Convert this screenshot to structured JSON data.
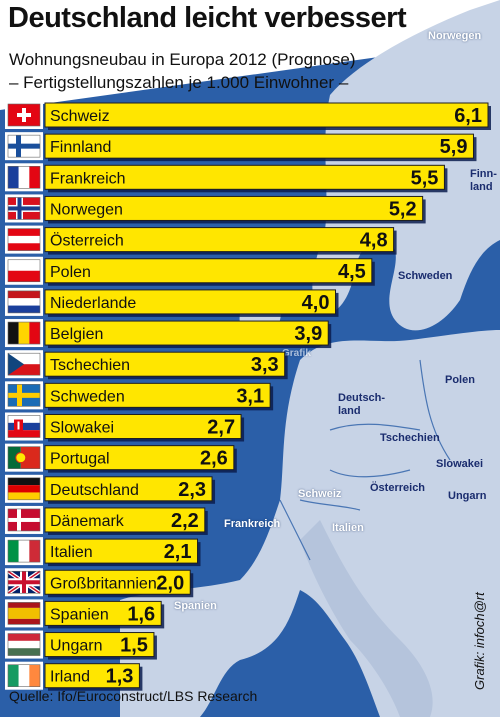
{
  "title": "Deutschland leicht verbessert",
  "subtitle": "Wohnungsneubau in Europa 2012 (Prognose)",
  "subtitle2": "– Fertigstellungszahlen je 1.000 Einwohner –",
  "source": "Quelle: Ifo/Euroconstruct/LBS Research",
  "credit": "Grafik: infoch@rt",
  "colors": {
    "bar": "#ffe600",
    "bar_edge": "#1f1f1f",
    "shadow": "#0a1c4e",
    "sea": "#2b5fa8",
    "land": "#c7d3e6"
  },
  "map_labels": {
    "norwegen": "Norwegen",
    "finnland": "Finn-\nland",
    "schweden": "Schweden",
    "polen": "Polen",
    "deutschland": "Deutsch-\nland",
    "tschechien": "Tschechien",
    "slowakei": "Slowakei",
    "oesterreich": "Österreich",
    "schweiz": "Schweiz",
    "ungarn": "Ungarn",
    "frankreich": "Frankreich",
    "italien": "Italien",
    "spanien": "Spanien",
    "grafik": "Grafik"
  },
  "chart_data": {
    "type": "bar",
    "orientation": "horizontal",
    "title": "Deutschland leicht verbessert",
    "subtitle": "Wohnungsneubau in Europa 2012 (Prognose)",
    "unit": "Fertigstellungszahlen je 1.000 Einwohner",
    "categories": [
      "Schweiz",
      "Finnland",
      "Frankreich",
      "Norwegen",
      "Österreich",
      "Polen",
      "Niederlande",
      "Belgien",
      "Tschechien",
      "Schweden",
      "Slowakei",
      "Portugal",
      "Deutschland",
      "Dänemark",
      "Italien",
      "Großbritannien",
      "Spanien",
      "Ungarn",
      "Irland"
    ],
    "values": [
      6.1,
      5.9,
      5.5,
      5.2,
      4.8,
      4.5,
      4.0,
      3.9,
      3.3,
      3.1,
      2.7,
      2.6,
      2.3,
      2.2,
      2.1,
      2.0,
      1.6,
      1.5,
      1.3
    ],
    "value_labels": [
      "6,1",
      "5,9",
      "5,5",
      "5,2",
      "4,8",
      "4,5",
      "4,0",
      "3,9",
      "3,3",
      "3,1",
      "2,7",
      "2,6",
      "2,3",
      "2,2",
      "2,1",
      "2,0",
      "1,6",
      "1,5",
      "1,3"
    ],
    "flags": [
      "flag-switzerland",
      "flag-finland",
      "flag-france",
      "flag-norway",
      "flag-austria",
      "flag-poland",
      "flag-netherlands",
      "flag-belgium",
      "flag-czech",
      "flag-sweden",
      "flag-slovakia",
      "flag-portugal",
      "flag-germany",
      "flag-denmark",
      "flag-italy",
      "flag-uk",
      "flag-spain",
      "flag-hungary",
      "flag-ireland"
    ],
    "xlim": [
      0,
      6.1
    ],
    "grid": false,
    "legend": "none"
  }
}
